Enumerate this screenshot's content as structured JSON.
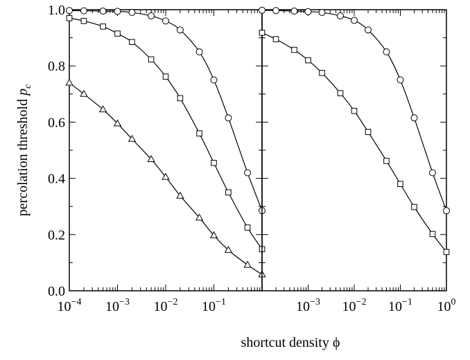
{
  "chart_data": [
    {
      "type": "line",
      "panel": "left",
      "xscale": "log",
      "xlim": [
        0.0001,
        1
      ],
      "ylim": [
        0.0,
        1.0
      ],
      "ylabel": "percolation threshold",
      "ylabel_symbol": "p",
      "ylabel_subscript": "c",
      "xticks": [
        {
          "base": "10",
          "exp": "−4"
        },
        {
          "base": "10",
          "exp": "−3"
        },
        {
          "base": "10",
          "exp": "−2"
        },
        {
          "base": "10",
          "exp": "−1"
        }
      ],
      "yticks": [
        "0.0",
        "0.2",
        "0.4",
        "0.6",
        "0.8",
        "1.0"
      ],
      "series": [
        {
          "marker": "circle",
          "x": [
            0.0001,
            0.0002,
            0.0005,
            0.001,
            0.002,
            0.005,
            0.01,
            0.02,
            0.05,
            0.1,
            0.2,
            0.5,
            1.0
          ],
          "y": [
            0.997,
            0.996,
            0.995,
            0.994,
            0.99,
            0.978,
            0.96,
            0.928,
            0.85,
            0.75,
            0.615,
            0.42,
            0.285
          ]
        },
        {
          "marker": "square",
          "x": [
            0.0001,
            0.0002,
            0.0005,
            0.001,
            0.002,
            0.005,
            0.01,
            0.02,
            0.05,
            0.1,
            0.2,
            0.5,
            1.0
          ],
          "y": [
            0.97,
            0.96,
            0.94,
            0.915,
            0.885,
            0.823,
            0.762,
            0.685,
            0.56,
            0.455,
            0.35,
            0.225,
            0.148
          ]
        },
        {
          "marker": "triangle",
          "x": [
            0.0001,
            0.0002,
            0.0005,
            0.001,
            0.002,
            0.005,
            0.01,
            0.02,
            0.05,
            0.1,
            0.2,
            0.5,
            1.0
          ],
          "y": [
            0.74,
            0.7,
            0.645,
            0.595,
            0.54,
            0.468,
            0.405,
            0.338,
            0.26,
            0.197,
            0.145,
            0.092,
            0.058
          ]
        }
      ]
    },
    {
      "type": "line",
      "panel": "right",
      "xscale": "log",
      "xlim": [
        0.0001,
        1
      ],
      "ylim": [
        0.0,
        1.0
      ],
      "xticks": [
        {
          "base": "10",
          "exp": "−3"
        },
        {
          "base": "10",
          "exp": "−2"
        },
        {
          "base": "10",
          "exp": "−1"
        },
        {
          "base": "10",
          "exp": "0"
        }
      ],
      "series": [
        {
          "marker": "circle",
          "x": [
            0.0001,
            0.0002,
            0.0005,
            0.001,
            0.002,
            0.005,
            0.01,
            0.02,
            0.05,
            0.1,
            0.2,
            0.5,
            1.0
          ],
          "y": [
            0.998,
            0.997,
            0.995,
            0.993,
            0.99,
            0.978,
            0.962,
            0.928,
            0.85,
            0.75,
            0.615,
            0.42,
            0.285
          ]
        },
        {
          "marker": "square",
          "x": [
            0.0001,
            0.0002,
            0.0005,
            0.001,
            0.002,
            0.005,
            0.01,
            0.02,
            0.05,
            0.1,
            0.2,
            0.5,
            1.0
          ],
          "y": [
            0.918,
            0.895,
            0.857,
            0.82,
            0.775,
            0.703,
            0.64,
            0.565,
            0.462,
            0.38,
            0.298,
            0.202,
            0.138
          ]
        }
      ]
    }
  ],
  "xlabel": "shortcut density ϕ"
}
